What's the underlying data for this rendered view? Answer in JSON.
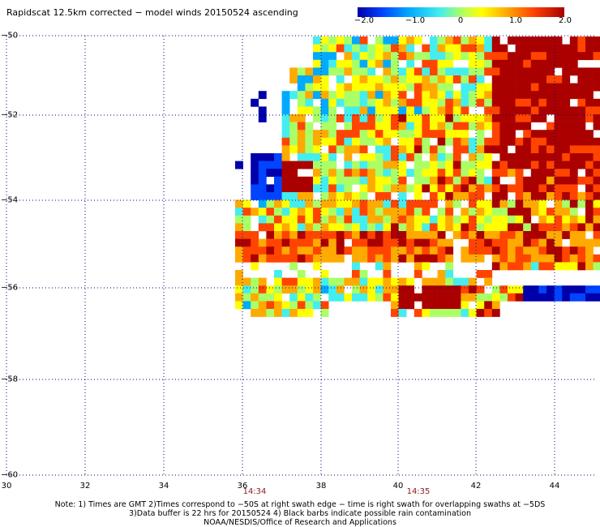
{
  "title": "Rapidscat 12.5km corrected − model winds 20150524 ascending",
  "colorbar": {
    "ticks": [
      "−2.0",
      "−1.0",
      "0",
      "1.0",
      "2.0"
    ],
    "range": [
      -2.0,
      2.0
    ],
    "colors": [
      "#0000aa",
      "#0044ff",
      "#00aaff",
      "#44eeee",
      "#aaff66",
      "#ffff00",
      "#ffaa00",
      "#ff4400",
      "#aa0000"
    ]
  },
  "axes": {
    "x_ticks": [
      "30",
      "32",
      "34",
      "36",
      "38",
      "40",
      "42",
      "44"
    ],
    "y_ticks": [
      "−50",
      "−52",
      "−54",
      "−56",
      "−58",
      "−60"
    ],
    "x_range": [
      30,
      45
    ],
    "y_range": [
      -60,
      -50
    ]
  },
  "swath_times": [
    {
      "label": "14:34",
      "lon": 36.3
    },
    {
      "label": "14:35",
      "lon": 40.5
    }
  ],
  "notes": {
    "line1": "Note: 1) Times are GMT 2)Times correspond to −50S at right swath edge − time is right swath for overlapping swaths at −5DS",
    "line2": "3)Data buffer is 22 hrs for 20150524 4) Black barbs indicate possible rain contamination",
    "line3": "NOAA/NESDIS/Office of Research and Applications"
  }
}
